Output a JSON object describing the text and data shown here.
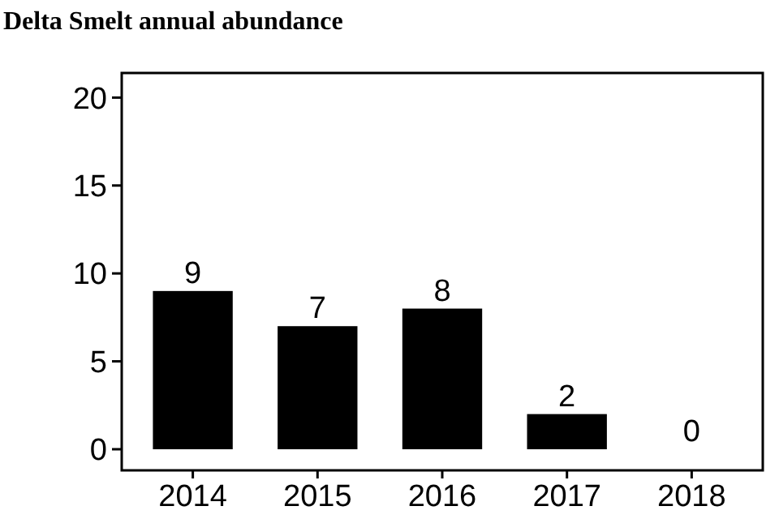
{
  "chart_data": {
    "type": "bar",
    "title": "Delta Smelt annual abundance",
    "categories": [
      "2014",
      "2015",
      "2016",
      "2017",
      "2018"
    ],
    "values": [
      9,
      7,
      8,
      2,
      0
    ],
    "color": "#000000",
    "ylim": [
      -1.2,
      21.4
    ],
    "yticks": [
      0,
      5,
      10,
      15,
      20
    ],
    "data_labels": true,
    "grid": false
  }
}
